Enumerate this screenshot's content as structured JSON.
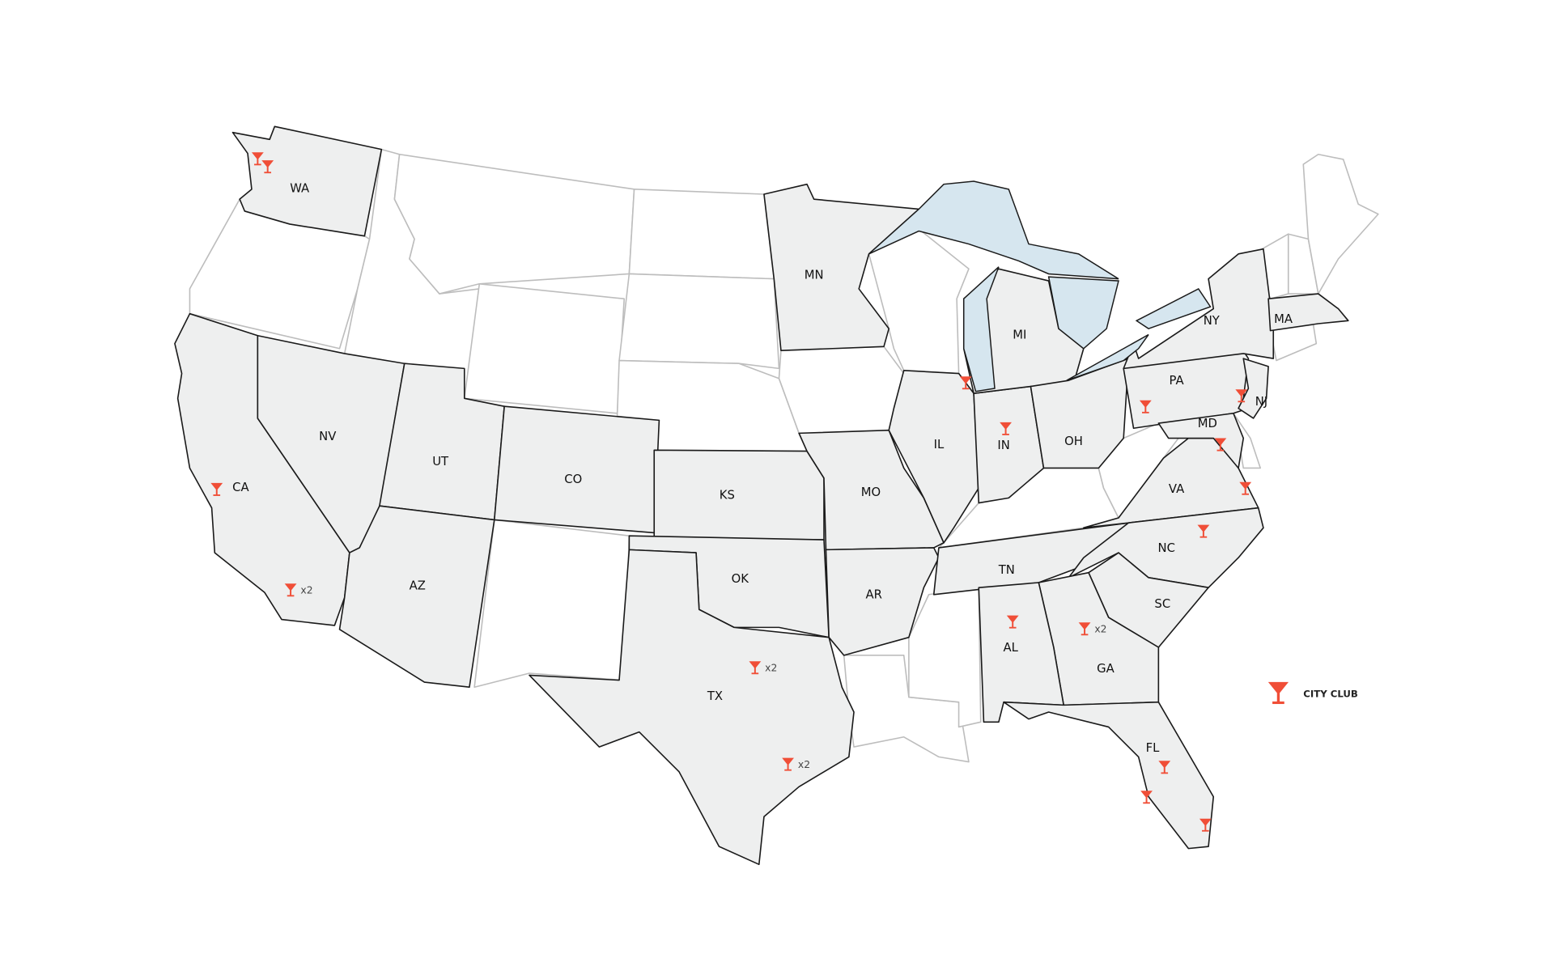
{
  "colors": {
    "highlighted_state": "#eeefef",
    "other_state": "#ffffff",
    "lake": "#d6e6ef",
    "marker": "#f04e37"
  },
  "legend": {
    "icon": "cocktail-glass-icon",
    "label": "CITY CLUB"
  },
  "states": {
    "WA": "WA",
    "CA": "CA",
    "NV": "NV",
    "UT": "UT",
    "CO": "CO",
    "AZ": "AZ",
    "KS": "KS",
    "OK": "OK",
    "TX": "TX",
    "MN": "MN",
    "MO": "MO",
    "AR": "AR",
    "IL": "IL",
    "IN": "IN",
    "MI": "MI",
    "OH": "OH",
    "PA": "PA",
    "NY": "NY",
    "NJ": "NJ",
    "MD": "MD",
    "VA": "VA",
    "NC": "NC",
    "SC": "SC",
    "TN": "TN",
    "GA": "GA",
    "AL": "AL",
    "FL": "FL",
    "MA": "MA"
  },
  "markers": [
    {
      "state": "WA",
      "count": ""
    },
    {
      "state": "WA",
      "count": ""
    },
    {
      "state": "CA",
      "count": ""
    },
    {
      "state": "CA",
      "count": "x2"
    },
    {
      "state": "TX",
      "count": "x2"
    },
    {
      "state": "TX",
      "count": "x2"
    },
    {
      "state": "IL",
      "count": ""
    },
    {
      "state": "IN",
      "count": ""
    },
    {
      "state": "PA",
      "count": ""
    },
    {
      "state": "NJ",
      "count": ""
    },
    {
      "state": "MD",
      "count": ""
    },
    {
      "state": "VA",
      "count": ""
    },
    {
      "state": "NC",
      "count": ""
    },
    {
      "state": "AL",
      "count": ""
    },
    {
      "state": "GA",
      "count": "x2"
    },
    {
      "state": "FL",
      "count": ""
    },
    {
      "state": "FL",
      "count": ""
    },
    {
      "state": "FL",
      "count": ""
    }
  ]
}
